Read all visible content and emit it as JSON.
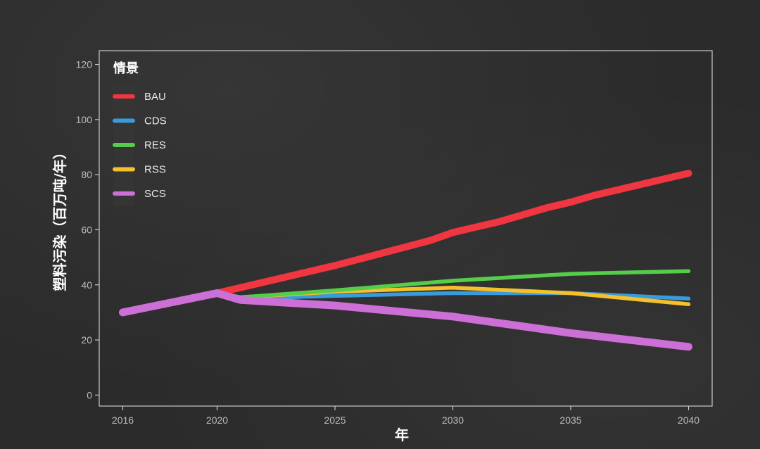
{
  "chart_data": {
    "type": "line",
    "xlabel": "年",
    "ylabel": "塑料污染（百万吨/年）",
    "xlim": [
      2015,
      2041
    ],
    "ylim": [
      -4,
      125
    ],
    "xticks": [
      2016,
      2020,
      2025,
      2030,
      2035,
      2040
    ],
    "yticks": [
      0,
      20,
      40,
      60,
      80,
      100,
      120
    ],
    "grid": false,
    "legend": {
      "title": "情景",
      "placement": "top-left"
    },
    "series": [
      {
        "name": "BAU",
        "color": "#f03640",
        "x": [
          2016,
          2020,
          2025,
          2029,
          2030,
          2031,
          2032,
          2033,
          2034,
          2035,
          2036,
          2037,
          2038,
          2039,
          2040
        ],
        "y": [
          30,
          37,
          47,
          56,
          59,
          61,
          63,
          65.5,
          68,
          70,
          72.5,
          74.5,
          76.5,
          78.5,
          80.5
        ]
      },
      {
        "name": "CDS",
        "color": "#3a9bdc",
        "x": [
          2020,
          2021,
          2025,
          2030,
          2035,
          2040
        ],
        "y": [
          37,
          35,
          36,
          37,
          37,
          35
        ]
      },
      {
        "name": "RES",
        "color": "#55cc4a",
        "x": [
          2020,
          2021,
          2025,
          2030,
          2035,
          2040
        ],
        "y": [
          37,
          35.5,
          38,
          41.5,
          44,
          45
        ]
      },
      {
        "name": "RSS",
        "color": "#f5c02a",
        "x": [
          2020,
          2021,
          2025,
          2030,
          2035,
          2040
        ],
        "y": [
          37,
          35.5,
          37.5,
          39,
          37,
          33
        ]
      },
      {
        "name": "SCS",
        "color": "#cc6fd6",
        "x": [
          2016,
          2020,
          2021,
          2025,
          2030,
          2035,
          2040
        ],
        "y": [
          30,
          37,
          34.5,
          32.5,
          28.5,
          22.5,
          17.5
        ]
      }
    ]
  }
}
